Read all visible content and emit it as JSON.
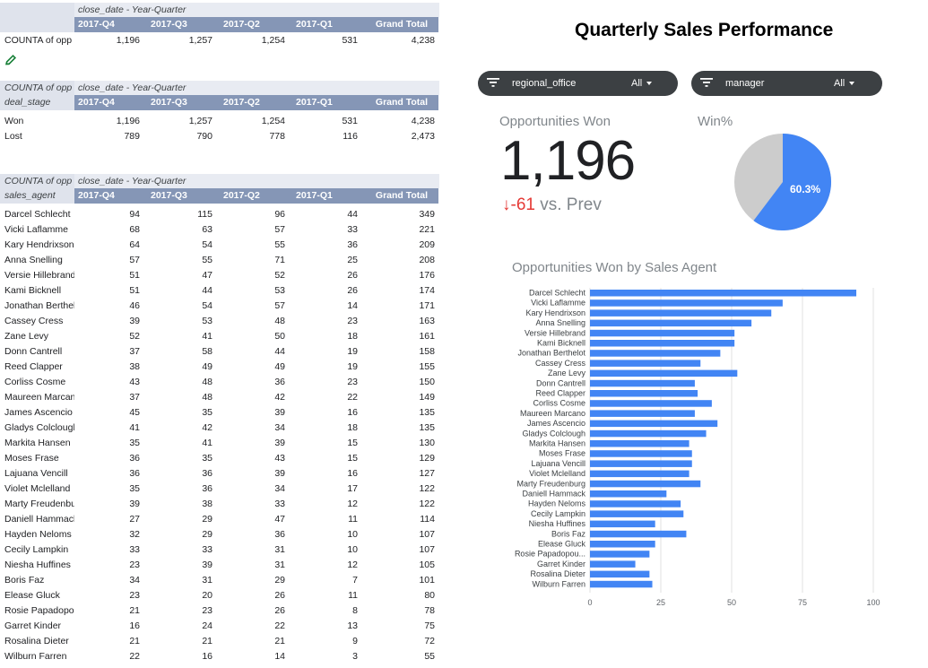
{
  "colors": {
    "header_fill": "#8596b6",
    "bar": "#4285f4",
    "pie_won": "#4285f4",
    "pie_rest": "#cccccc",
    "negative": "#e53935"
  },
  "pivot1": {
    "caption": "close_date - Year-Quarter",
    "columns": [
      "2017-Q4",
      "2017-Q3",
      "2017-Q2",
      "2017-Q1",
      "Grand Total"
    ],
    "rows": [
      {
        "label": "COUNTA of opp",
        "values": [
          "1,196",
          "1,257",
          "1,254",
          "531",
          "4,238"
        ]
      }
    ],
    "edit_icon": "pencil-icon"
  },
  "pivot2": {
    "corner": "COUNTA of opp",
    "caption": "close_date - Year-Quarter",
    "row_header": "deal_stage",
    "columns": [
      "2017-Q4",
      "2017-Q3",
      "2017-Q2",
      "2017-Q1",
      "Grand Total"
    ],
    "rows": [
      {
        "label": "Won",
        "values": [
          "1,196",
          "1,257",
          "1,254",
          "531",
          "4,238"
        ]
      },
      {
        "label": "Lost",
        "values": [
          "789",
          "790",
          "778",
          "116",
          "2,473"
        ]
      }
    ]
  },
  "pivot3": {
    "corner": "COUNTA of opp",
    "caption": "close_date - Year-Quarter",
    "row_header": "sales_agent",
    "columns": [
      "2017-Q4",
      "2017-Q3",
      "2017-Q2",
      "2017-Q1",
      "Grand Total"
    ],
    "rows": [
      {
        "label": "Darcel Schlecht",
        "values": [
          "94",
          "115",
          "96",
          "44",
          "349"
        ]
      },
      {
        "label": "Vicki Laflamme",
        "values": [
          "68",
          "63",
          "57",
          "33",
          "221"
        ]
      },
      {
        "label": "Kary Hendrixson",
        "values": [
          "64",
          "54",
          "55",
          "36",
          "209"
        ]
      },
      {
        "label": "Anna Snelling",
        "values": [
          "57",
          "55",
          "71",
          "25",
          "208"
        ]
      },
      {
        "label": "Versie Hillebrand",
        "values": [
          "51",
          "47",
          "52",
          "26",
          "176"
        ]
      },
      {
        "label": "Kami Bicknell",
        "values": [
          "51",
          "44",
          "53",
          "26",
          "174"
        ]
      },
      {
        "label": "Jonathan Berthelot",
        "values": [
          "46",
          "54",
          "57",
          "14",
          "171"
        ]
      },
      {
        "label": "Cassey Cress",
        "values": [
          "39",
          "53",
          "48",
          "23",
          "163"
        ]
      },
      {
        "label": "Zane Levy",
        "values": [
          "52",
          "41",
          "50",
          "18",
          "161"
        ]
      },
      {
        "label": "Donn Cantrell",
        "values": [
          "37",
          "58",
          "44",
          "19",
          "158"
        ]
      },
      {
        "label": "Reed Clapper",
        "values": [
          "38",
          "49",
          "49",
          "19",
          "155"
        ]
      },
      {
        "label": "Corliss Cosme",
        "values": [
          "43",
          "48",
          "36",
          "23",
          "150"
        ]
      },
      {
        "label": "Maureen Marcano",
        "values": [
          "37",
          "48",
          "42",
          "22",
          "149"
        ]
      },
      {
        "label": "James Ascencio",
        "values": [
          "45",
          "35",
          "39",
          "16",
          "135"
        ]
      },
      {
        "label": "Gladys Colclough",
        "values": [
          "41",
          "42",
          "34",
          "18",
          "135"
        ]
      },
      {
        "label": "Markita Hansen",
        "values": [
          "35",
          "41",
          "39",
          "15",
          "130"
        ]
      },
      {
        "label": "Moses Frase",
        "values": [
          "36",
          "35",
          "43",
          "15",
          "129"
        ]
      },
      {
        "label": "Lajuana Vencill",
        "values": [
          "36",
          "36",
          "39",
          "16",
          "127"
        ]
      },
      {
        "label": "Violet Mclelland",
        "values": [
          "35",
          "36",
          "34",
          "17",
          "122"
        ]
      },
      {
        "label": "Marty Freudenburg",
        "values": [
          "39",
          "38",
          "33",
          "12",
          "122"
        ]
      },
      {
        "label": "Daniell Hammack",
        "values": [
          "27",
          "29",
          "47",
          "11",
          "114"
        ]
      },
      {
        "label": "Hayden Neloms",
        "values": [
          "32",
          "29",
          "36",
          "10",
          "107"
        ]
      },
      {
        "label": "Cecily Lampkin",
        "values": [
          "33",
          "33",
          "31",
          "10",
          "107"
        ]
      },
      {
        "label": "Niesha Huffines",
        "values": [
          "23",
          "39",
          "31",
          "12",
          "105"
        ]
      },
      {
        "label": "Boris Faz",
        "values": [
          "34",
          "31",
          "29",
          "7",
          "101"
        ]
      },
      {
        "label": "Elease Gluck",
        "values": [
          "23",
          "20",
          "26",
          "11",
          "80"
        ]
      },
      {
        "label": "Rosie Papadopoulos",
        "values": [
          "21",
          "23",
          "26",
          "8",
          "78"
        ]
      },
      {
        "label": "Garret Kinder",
        "values": [
          "16",
          "24",
          "22",
          "13",
          "75"
        ]
      },
      {
        "label": "Rosalina Dieter",
        "values": [
          "21",
          "21",
          "21",
          "9",
          "72"
        ]
      },
      {
        "label": "Wilburn Farren",
        "values": [
          "22",
          "16",
          "14",
          "3",
          "55"
        ]
      }
    ]
  },
  "dashboard": {
    "title": "Quarterly Sales Performance",
    "filters": [
      {
        "label": "regional_office",
        "value": "All",
        "icon": "filter-icon"
      },
      {
        "label": "manager",
        "value": "All",
        "icon": "filter-icon"
      }
    ],
    "kpi": {
      "label": "Opportunities Won",
      "value": "1,196",
      "delta": "-61",
      "delta_suffix": "vs. Prev",
      "delta_icon": "arrow-down-icon"
    },
    "winpct": {
      "label": "Win%",
      "percent_label": "60.3%",
      "fraction": 0.603
    }
  },
  "chart_data": {
    "type": "bar",
    "orientation": "horizontal",
    "title": "Opportunities Won by Sales Agent",
    "categories": [
      "Darcel Schlecht",
      "Vicki Laflamme",
      "Kary Hendrixson",
      "Anna Snelling",
      "Versie Hillebrand",
      "Kami Bicknell",
      "Jonathan Berthelot",
      "Cassey Cress",
      "Zane Levy",
      "Donn Cantrell",
      "Reed Clapper",
      "Corliss Cosme",
      "Maureen Marcano",
      "James Ascencio",
      "Gladys Colclough",
      "Markita Hansen",
      "Moses Frase",
      "Lajuana Vencill",
      "Violet Mclelland",
      "Marty Freudenburg",
      "Daniell Hammack",
      "Hayden Neloms",
      "Cecily Lampkin",
      "Niesha Huffines",
      "Boris Faz",
      "Elease Gluck",
      "Rosie Papadopou...",
      "Garret Kinder",
      "Rosalina Dieter",
      "Wilburn Farren"
    ],
    "values": [
      94,
      68,
      64,
      57,
      51,
      51,
      46,
      39,
      52,
      37,
      38,
      43,
      37,
      45,
      41,
      35,
      36,
      36,
      35,
      39,
      27,
      32,
      33,
      23,
      34,
      23,
      21,
      16,
      21,
      22
    ],
    "xlim": [
      0,
      100
    ],
    "xticks": [
      "0",
      "25",
      "50",
      "75",
      "100"
    ],
    "grid": true,
    "legend": "none"
  }
}
